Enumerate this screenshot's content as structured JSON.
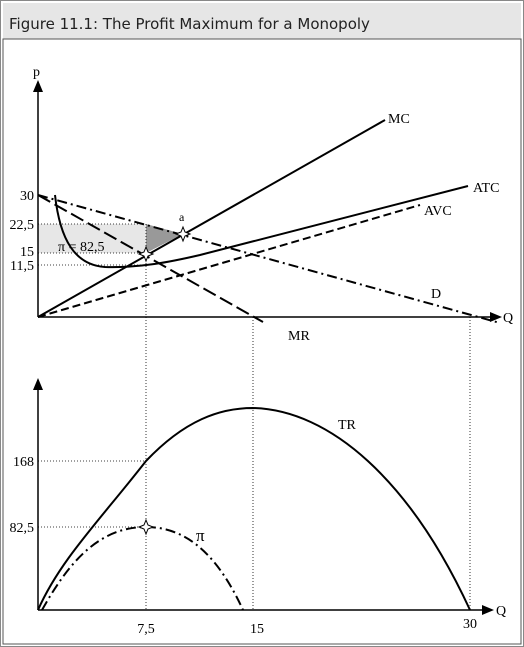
{
  "header": {
    "title": "Figure 11.1: The Profit Maximum for a Monopoly"
  },
  "upper": {
    "y_axis": "p",
    "x_axis": "Q",
    "ticks": [
      "30",
      "22,5",
      "15",
      "11,5"
    ],
    "curves": {
      "mc": "MC",
      "atc": "ATC",
      "avc": "AVC",
      "d": "D",
      "mr": "MR"
    },
    "point": "a",
    "profit": "π = 82,5"
  },
  "lower": {
    "x_axis": "Q",
    "ticks": [
      "168",
      "82,5"
    ],
    "x_ticks": [
      "7,5",
      "15",
      "30"
    ],
    "curves": {
      "tr": "TR",
      "pi": "π"
    }
  }
}
